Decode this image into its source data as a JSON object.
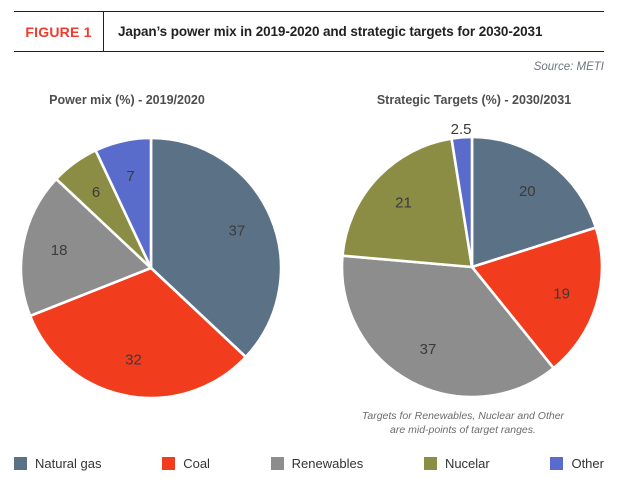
{
  "header": {
    "figure_label": "FIGURE 1",
    "title": "Japan’s power mix in 2019-2020 and strategic targets for 2030-2031"
  },
  "source_note": "Source: METI",
  "colors": {
    "natural_gas": "#5b7186",
    "coal": "#f23c1e",
    "renewables": "#8d8d8d",
    "nuclear": "#8b8d44",
    "other": "#5a6ccb"
  },
  "chart_data": [
    {
      "type": "pie",
      "title": "Power mix (%) - 2019/2020",
      "unit": "%",
      "start_angle_deg": 0,
      "direction": "clockwise",
      "slices": [
        {
          "label": "Natural gas",
          "value": 37,
          "color_key": "natural_gas"
        },
        {
          "label": "Coal",
          "value": 32,
          "color_key": "coal"
        },
        {
          "label": "Renewables",
          "value": 18,
          "color_key": "renewables"
        },
        {
          "label": "Nuclear",
          "value": 6,
          "color_key": "nuclear"
        },
        {
          "label": "Other",
          "value": 7,
          "color_key": "other"
        }
      ]
    },
    {
      "type": "pie",
      "title": "Strategic Targets (%) - 2030/2031",
      "unit": "%",
      "start_angle_deg": 0,
      "direction": "clockwise",
      "slices": [
        {
          "label": "Natural gas",
          "value": 20,
          "color_key": "natural_gas"
        },
        {
          "label": "Coal",
          "value": 19,
          "color_key": "coal"
        },
        {
          "label": "Renewables",
          "value": 37,
          "color_key": "renewables"
        },
        {
          "label": "Nuclear",
          "value": 21,
          "color_key": "nuclear"
        },
        {
          "label": "Other",
          "value": 2.5,
          "color_key": "other",
          "label_outside": true
        }
      ]
    }
  ],
  "footnote": {
    "line1": "Targets for Renewables, Nuclear and Other",
    "line2": "are mid-points of target ranges."
  },
  "legend": {
    "items": [
      {
        "label": "Natural gas",
        "color_key": "natural_gas"
      },
      {
        "label": "Coal",
        "color_key": "coal"
      },
      {
        "label": "Renewables",
        "color_key": "renewables"
      },
      {
        "label": "Nucelar",
        "color_key": "nuclear"
      },
      {
        "label": "Other",
        "color_key": "other"
      }
    ]
  }
}
